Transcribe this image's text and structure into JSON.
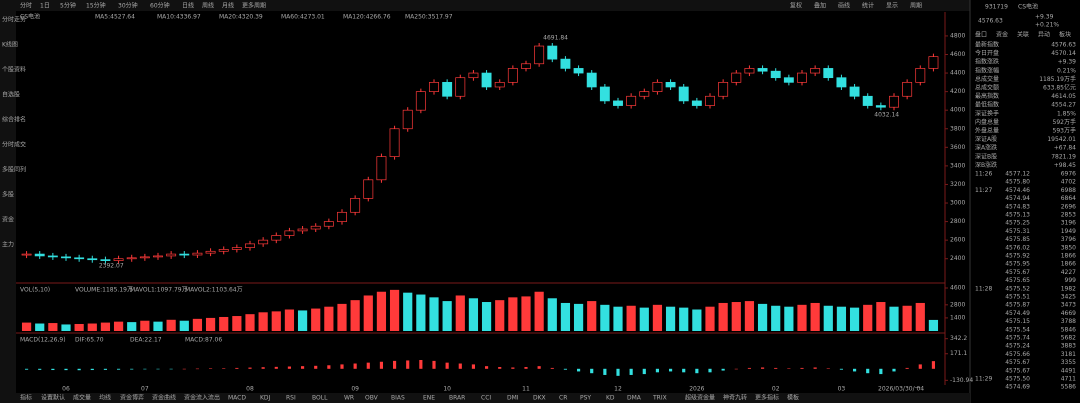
{
  "toolbar": {
    "periods": [
      "分时",
      "1日",
      "5分钟",
      "15分钟",
      "30分钟",
      "60分钟",
      "日线",
      "周线",
      "月线",
      "更多周期"
    ],
    "tools": [
      "复权",
      "叠加",
      "画线",
      "统计",
      "显示",
      "周期"
    ]
  },
  "sidebar": [
    "分时走势",
    "K线图",
    "个股资料",
    "自选股",
    "综合排名",
    "分时成交",
    "多股同列",
    "多股",
    "资金",
    "主力"
  ],
  "price_chart": {
    "type": "candlestick",
    "name": "CS电池",
    "legend": [
      "MA5:4527.64",
      "MA10:4336.97",
      "MA20:4320.39",
      "MA60:4273.01",
      "MA120:4266.76",
      "MA250:3517.97"
    ],
    "annotations": {
      "high": "4691.84",
      "low": "2392.07",
      "last_low": "4032.14"
    },
    "values": [
      2450,
      2430,
      2420,
      2410,
      2400,
      2390,
      2380,
      2400,
      2410,
      2420,
      2430,
      2450,
      2440,
      2460,
      2480,
      2500,
      2520,
      2560,
      2600,
      2650,
      2700,
      2720,
      2750,
      2800,
      2900,
      3050,
      3250,
      3500,
      3800,
      4000,
      4200,
      4300,
      4150,
      4350,
      4400,
      4250,
      4300,
      4450,
      4500,
      4691,
      4550,
      4450,
      4400,
      4250,
      4100,
      4050,
      4150,
      4200,
      4300,
      4250,
      4100,
      4050,
      4150,
      4300,
      4400,
      4450,
      4420,
      4350,
      4300,
      4400,
      4450,
      4350,
      4250,
      4150,
      4050,
      4032,
      4150,
      4300,
      4450,
      4576.63
    ],
    "ylim": [
      2300,
      4950
    ],
    "yticks": [
      2400,
      2600,
      2800,
      3000,
      3200,
      3400,
      3600,
      3800,
      4000,
      4200,
      4400,
      4600,
      4800
    ],
    "x_labels": [
      {
        "index": 3,
        "label": "06"
      },
      {
        "index": 9,
        "label": "07"
      },
      {
        "index": 17,
        "label": "08"
      },
      {
        "index": 25,
        "label": "09"
      },
      {
        "index": 32,
        "label": "10"
      },
      {
        "index": 38,
        "label": "11"
      },
      {
        "index": 45,
        "label": "12"
      },
      {
        "index": 51,
        "label": "2026"
      },
      {
        "index": 57,
        "label": "02"
      },
      {
        "index": 62,
        "label": "03"
      },
      {
        "index": 68,
        "label": "04"
      }
    ],
    "date": "2026/03/30/一"
  },
  "volume_chart": {
    "type": "bar",
    "legend": [
      "VOL(5,10)",
      "VOLUME:1185.19万",
      "MAVOL1:1097.79万",
      "MAVOL2:1103.64万"
    ],
    "values": [
      900,
      800,
      850,
      700,
      750,
      800,
      900,
      1000,
      950,
      1100,
      1000,
      1200,
      1100,
      1300,
      1400,
      1500,
      1600,
      1800,
      2000,
      2100,
      2300,
      2200,
      2400,
      2600,
      2900,
      3300,
      3800,
      4200,
      4400,
      4100,
      3900,
      3600,
      3200,
      3800,
      3500,
      3100,
      3300,
      3600,
      3700,
      4200,
      3500,
      3000,
      2900,
      3200,
      2800,
      2600,
      2700,
      2500,
      2800,
      2600,
      2500,
      2300,
      2600,
      3000,
      3100,
      3200,
      2900,
      2700,
      2600,
      2800,
      3000,
      2700,
      2600,
      2500,
      2800,
      3100,
      2600,
      2700,
      3000,
      1185.19
    ],
    "ylim": [
      0,
      4600
    ],
    "yticks": [
      1400,
      2800,
      4600
    ]
  },
  "macd_chart": {
    "type": "bar",
    "legend": [
      "MACD(12,26,9)",
      "DIF:65.70",
      "DEA:22.17",
      "MACD:87.06"
    ],
    "values": [
      -10,
      -12,
      -14,
      -15,
      -16,
      -14,
      -12,
      -10,
      -8,
      -6,
      -4,
      -2,
      0,
      2,
      4,
      6,
      10,
      14,
      18,
      22,
      26,
      30,
      34,
      40,
      50,
      60,
      70,
      80,
      90,
      95,
      100,
      90,
      70,
      60,
      50,
      30,
      20,
      15,
      20,
      30,
      10,
      -10,
      -30,
      -50,
      -70,
      -80,
      -70,
      -60,
      -40,
      -30,
      -40,
      -50,
      -40,
      -20,
      0,
      10,
      15,
      10,
      5,
      10,
      15,
      5,
      -10,
      -30,
      -50,
      -60,
      -30,
      10,
      50,
      87.06
    ],
    "ylim": [
      -150,
      350
    ],
    "yticks": [
      -130.94,
      171.1,
      342.2
    ]
  },
  "quote": {
    "code": "931719",
    "name": "CS电池",
    "price": "4576.63",
    "change": "+9.39",
    "pct": "+0.21%",
    "tabs": [
      "盘口",
      "资金",
      "关联",
      "异动",
      "板块"
    ],
    "fields": [
      [
        "最新指数",
        "4576.63"
      ],
      [
        "今日开盘",
        "4570.14"
      ],
      [
        "指数涨跌",
        "+9.39"
      ],
      [
        "指数涨幅",
        "0.21%"
      ],
      [
        "总成交量",
        "1185.19万手"
      ],
      [
        "总成交额",
        "633.85亿元"
      ],
      [
        "最高指数",
        "4614.05"
      ],
      [
        "最低指数",
        "4554.27"
      ],
      [
        "深证换手",
        "1.85%"
      ],
      [
        "内盘总量",
        "592万手"
      ],
      [
        "外盘总量",
        "593万手"
      ],
      [
        "深证A股",
        "19542.01"
      ],
      [
        "深A涨跌",
        "+67.84"
      ],
      [
        "深证B股",
        "7821.19"
      ],
      [
        "深B涨跌",
        "+98.45"
      ]
    ]
  },
  "trades": [
    [
      "11:26",
      "4577.12",
      "6976"
    ],
    [
      "",
      "4575.80",
      "4702"
    ],
    [
      "11:27",
      "4574.46",
      "6988"
    ],
    [
      "",
      "4574.94",
      "6864"
    ],
    [
      "",
      "4574.83",
      "2696"
    ],
    [
      "",
      "4575.13",
      "2853"
    ],
    [
      "",
      "4575.25",
      "3196"
    ],
    [
      "",
      "4575.31",
      "1949"
    ],
    [
      "",
      "4575.85",
      "3796"
    ],
    [
      "",
      "4576.02",
      "3850"
    ],
    [
      "",
      "4575.92",
      "1866"
    ],
    [
      "",
      "4575.95",
      "1866"
    ],
    [
      "",
      "4575.67",
      "4227"
    ],
    [
      "",
      "4575.65",
      "999"
    ],
    [
      "11:28",
      "4575.52",
      "1982"
    ],
    [
      "",
      "4575.51",
      "3425"
    ],
    [
      "",
      "4575.87",
      "3473"
    ],
    [
      "",
      "4574.49",
      "4669"
    ],
    [
      "",
      "4575.15",
      "3788"
    ],
    [
      "",
      "4575.54",
      "5846"
    ],
    [
      "",
      "4575.74",
      "5682"
    ],
    [
      "",
      "4575.24",
      "3883"
    ],
    [
      "",
      "4575.66",
      "3181"
    ],
    [
      "",
      "4575.67",
      "3355"
    ],
    [
      "",
      "4575.67",
      "4491"
    ],
    [
      "11:29",
      "4575.50",
      "4711"
    ],
    [
      "",
      "4574.69",
      "5586"
    ]
  ],
  "bottom_tabs": [
    "指标",
    "设置默认",
    "成交量",
    "均线",
    "资金博弈",
    "资金曲线",
    "资金流入流出",
    "MACD",
    "KDJ",
    "RSI",
    "BOLL",
    "WR",
    "OBV",
    "BIAS",
    "ENE",
    "BRAR",
    "CCI",
    "DMI",
    "DKX",
    "CR",
    "PSY",
    "KD",
    "DMA",
    "TRIX",
    "超级资金量",
    "神奇九转",
    "更多指标",
    "模板"
  ]
}
